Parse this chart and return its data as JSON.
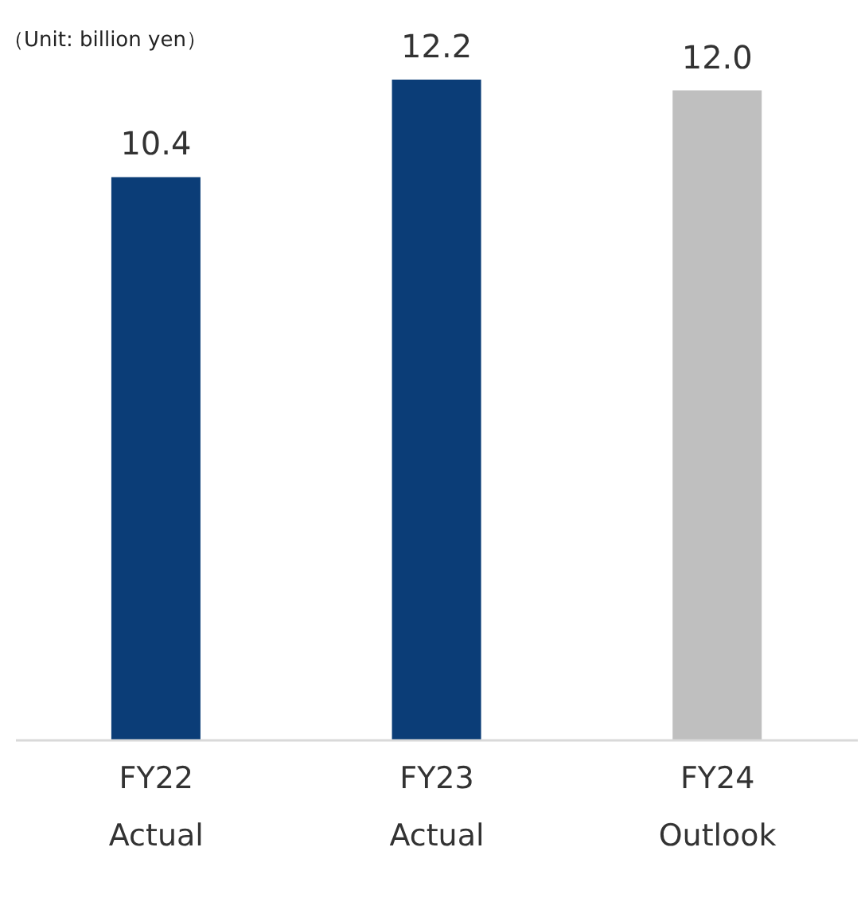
{
  "chart_data": {
    "type": "bar",
    "categories": [
      "FY22\nActual",
      "FY23\nActual",
      "FY24\nOutlook"
    ],
    "values": [
      10.4,
      12.2,
      12.0
    ],
    "value_labels": [
      "10.4",
      "12.2",
      "12.0"
    ],
    "colors": [
      "#0b3d77",
      "#0b3d77",
      "#bfbfbf"
    ],
    "tick_labels": "x",
    "annotations": [
      "（Unit: billion yen）"
    ]
  }
}
